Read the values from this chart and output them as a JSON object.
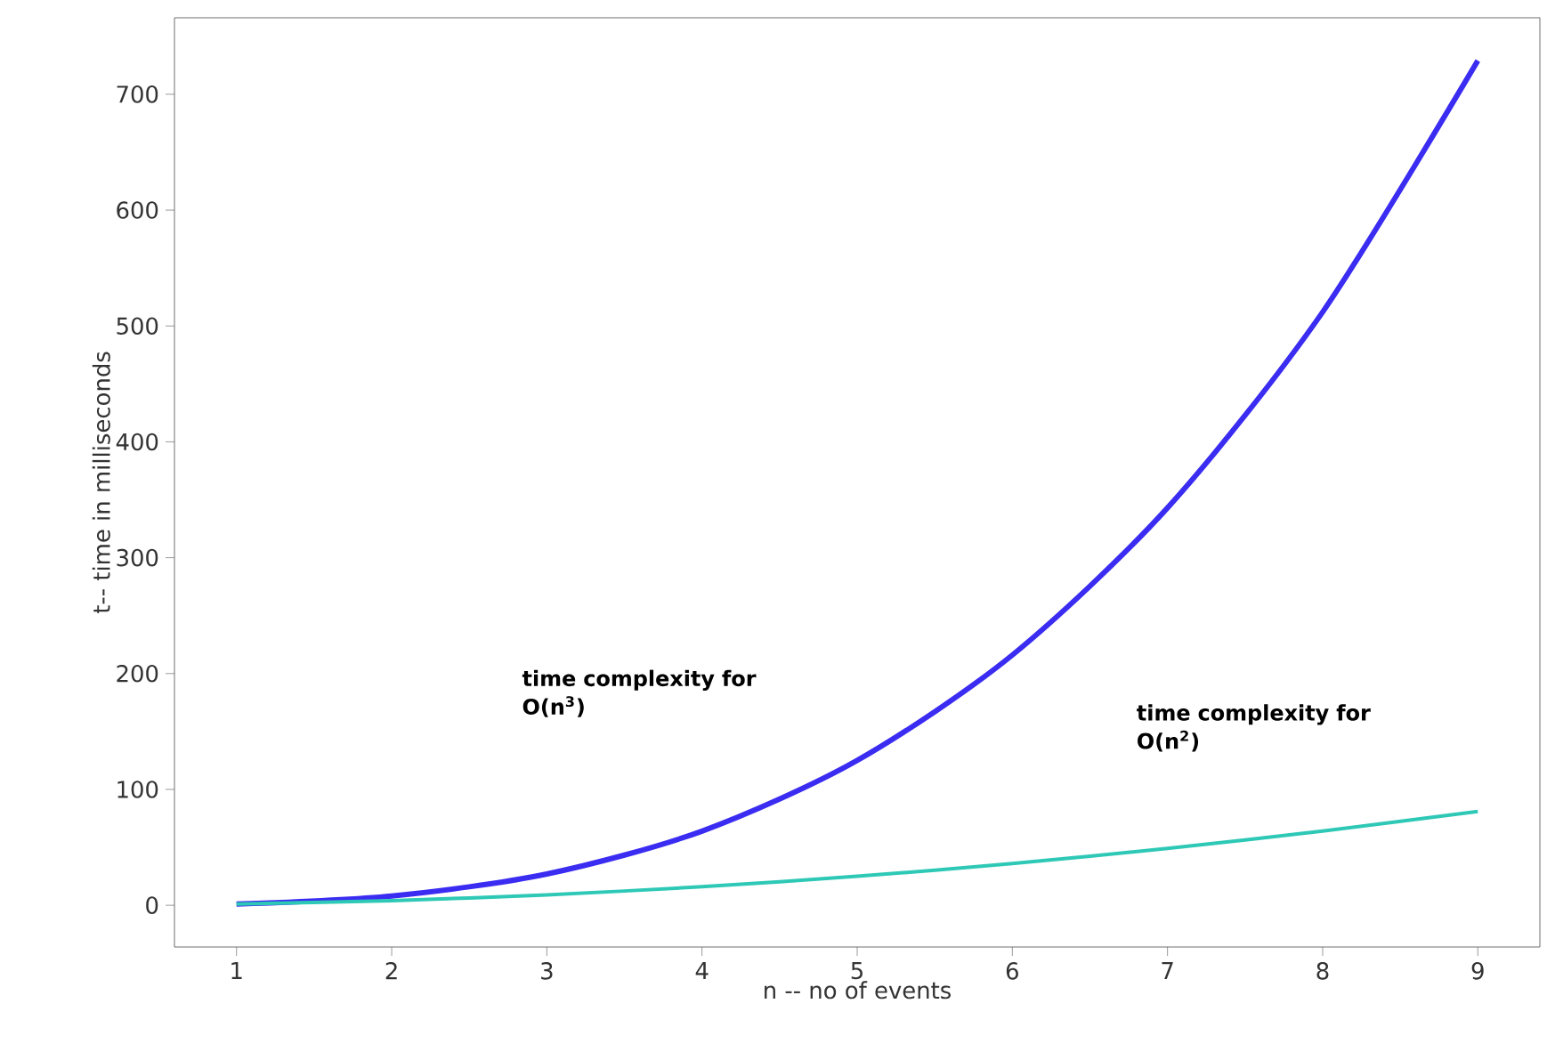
{
  "chart_data": {
    "type": "line",
    "xlabel": "n -- no of events",
    "ylabel": "t-- time in milliseconds",
    "x": [
      1,
      2,
      3,
      4,
      5,
      6,
      7,
      8,
      9
    ],
    "series": [
      {
        "color": "#3b2cf2",
        "values": [
          1,
          8,
          27,
          64,
          125,
          216,
          343,
          512,
          729
        ]
      },
      {
        "color": "#2ec8b6",
        "values": [
          1,
          4,
          9,
          16,
          25,
          36,
          49,
          64,
          81
        ]
      }
    ],
    "annotations": [
      "time complexity for O(n$^{3}$)",
      "time complexity for O(n$^{2}$)"
    ],
    "xlim": [
      0.6,
      9.4
    ],
    "ylim": [
      -36,
      766
    ],
    "xticks": [
      1,
      2,
      3,
      4,
      5,
      6,
      7,
      8,
      9
    ],
    "yticks": [
      0,
      100,
      200,
      300,
      400,
      500,
      600,
      700
    ]
  }
}
